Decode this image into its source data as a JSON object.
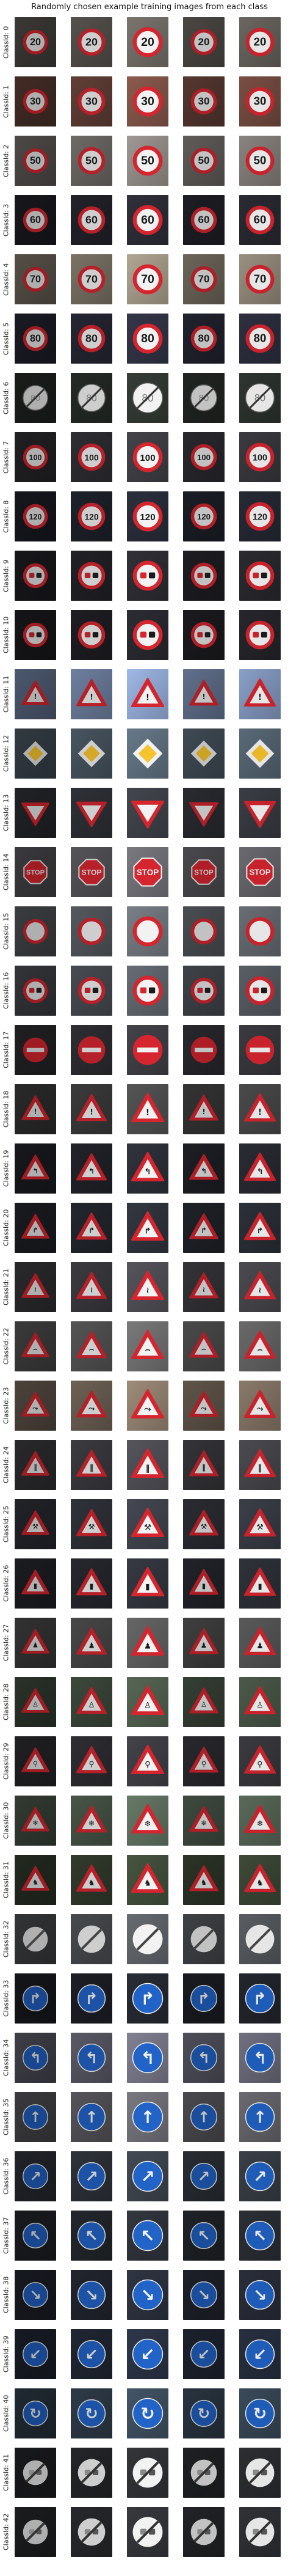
{
  "title": "Randomly chosen example training images from each class",
  "row_label_prefix": "ClassId: ",
  "columns": 5,
  "rows": [
    {
      "id": "0",
      "sign": "speed",
      "text": "20",
      "bg": "#6b6660"
    },
    {
      "id": "1",
      "sign": "speed",
      "text": "30",
      "bg": "#7a4f44"
    },
    {
      "id": "2",
      "sign": "speed",
      "text": "50",
      "bg": "#8a8480"
    },
    {
      "id": "3",
      "sign": "speed",
      "text": "60",
      "bg": "#2a2a33"
    },
    {
      "id": "4",
      "sign": "speed",
      "text": "70",
      "bg": "#9a9080"
    },
    {
      "id": "5",
      "sign": "speed",
      "text": "80",
      "bg": "#2e3040"
    },
    {
      "id": "6",
      "sign": "endlimit",
      "text": "80",
      "bg": "#2f3530"
    },
    {
      "id": "7",
      "sign": "speed",
      "text": "100",
      "bg": "#3a3a40"
    },
    {
      "id": "8",
      "sign": "speed",
      "text": "120",
      "bg": "#262a35"
    },
    {
      "id": "9",
      "sign": "nopass",
      "text": "",
      "bg": "#2a2a30"
    },
    {
      "id": "10",
      "sign": "nopass",
      "text": "",
      "bg": "#26262c"
    },
    {
      "id": "11",
      "sign": "triangle",
      "text": "!",
      "bg": "#8aa0c8"
    },
    {
      "id": "12",
      "sign": "priority",
      "text": "",
      "bg": "#5a6a78"
    },
    {
      "id": "13",
      "sign": "yield",
      "text": "",
      "bg": "#3a3d44"
    },
    {
      "id": "14",
      "sign": "stop",
      "text": "STOP",
      "bg": "#6a6a70"
    },
    {
      "id": "15",
      "sign": "novehicle",
      "text": "",
      "bg": "#6a6f75"
    },
    {
      "id": "16",
      "sign": "nopass",
      "text": "",
      "bg": "#5a5f66"
    },
    {
      "id": "17",
      "sign": "noentry",
      "text": "",
      "bg": "#3a3a40"
    },
    {
      "id": "18",
      "sign": "triangle",
      "text": "!",
      "bg": "#4a4a4a"
    },
    {
      "id": "19",
      "sign": "triangle",
      "text": "↰",
      "bg": "#2a2c34"
    },
    {
      "id": "20",
      "sign": "triangle",
      "text": "↱",
      "bg": "#2c3038"
    },
    {
      "id": "21",
      "sign": "triangle",
      "text": "≀",
      "bg": "#4a4a50"
    },
    {
      "id": "22",
      "sign": "triangle",
      "text": "⌢",
      "bg": "#6a6a6a"
    },
    {
      "id": "23",
      "sign": "triangle",
      "text": "⤳",
      "bg": "#8a7a6a"
    },
    {
      "id": "24",
      "sign": "triangle",
      "text": "‖",
      "bg": "#4a4a50"
    },
    {
      "id": "25",
      "sign": "triangle",
      "text": "⚒",
      "bg": "#3c3f48"
    },
    {
      "id": "26",
      "sign": "triangle",
      "text": "▮",
      "bg": "#30323a"
    },
    {
      "id": "27",
      "sign": "triangle",
      "text": "♟",
      "bg": "#5a5a5a"
    },
    {
      "id": "28",
      "sign": "triangle",
      "text": "♙",
      "bg": "#4c5a4a"
    },
    {
      "id": "29",
      "sign": "triangle",
      "text": "⚲",
      "bg": "#3a3a40"
    },
    {
      "id": "30",
      "sign": "triangle",
      "text": "❄",
      "bg": "#5a6a5a"
    },
    {
      "id": "31",
      "sign": "triangle",
      "text": "♞",
      "bg": "#3e4a38"
    },
    {
      "id": "32",
      "sign": "endall",
      "text": "",
      "bg": "#5a5e62"
    },
    {
      "id": "33",
      "sign": "blue",
      "text": "↱",
      "bg": "#24262e"
    },
    {
      "id": "34",
      "sign": "blue",
      "text": "↰",
      "bg": "#707080"
    },
    {
      "id": "35",
      "sign": "blue",
      "text": "↑",
      "bg": "#6a6a70"
    },
    {
      "id": "36",
      "sign": "blue",
      "text": "↗",
      "bg": "#3a4048"
    },
    {
      "id": "37",
      "sign": "blue",
      "text": "↖",
      "bg": "#2c3036"
    },
    {
      "id": "38",
      "sign": "blue",
      "text": "↘",
      "bg": "#2a2e3a"
    },
    {
      "id": "39",
      "sign": "blue",
      "text": "↙",
      "bg": "#283040"
    },
    {
      "id": "40",
      "sign": "blue",
      "text": "↻",
      "bg": "#3a4a5a"
    },
    {
      "id": "41",
      "sign": "endnopass",
      "text": "",
      "bg": "#2c2e32"
    },
    {
      "id": "42",
      "sign": "endnopass",
      "text": "",
      "bg": "#303236"
    }
  ]
}
